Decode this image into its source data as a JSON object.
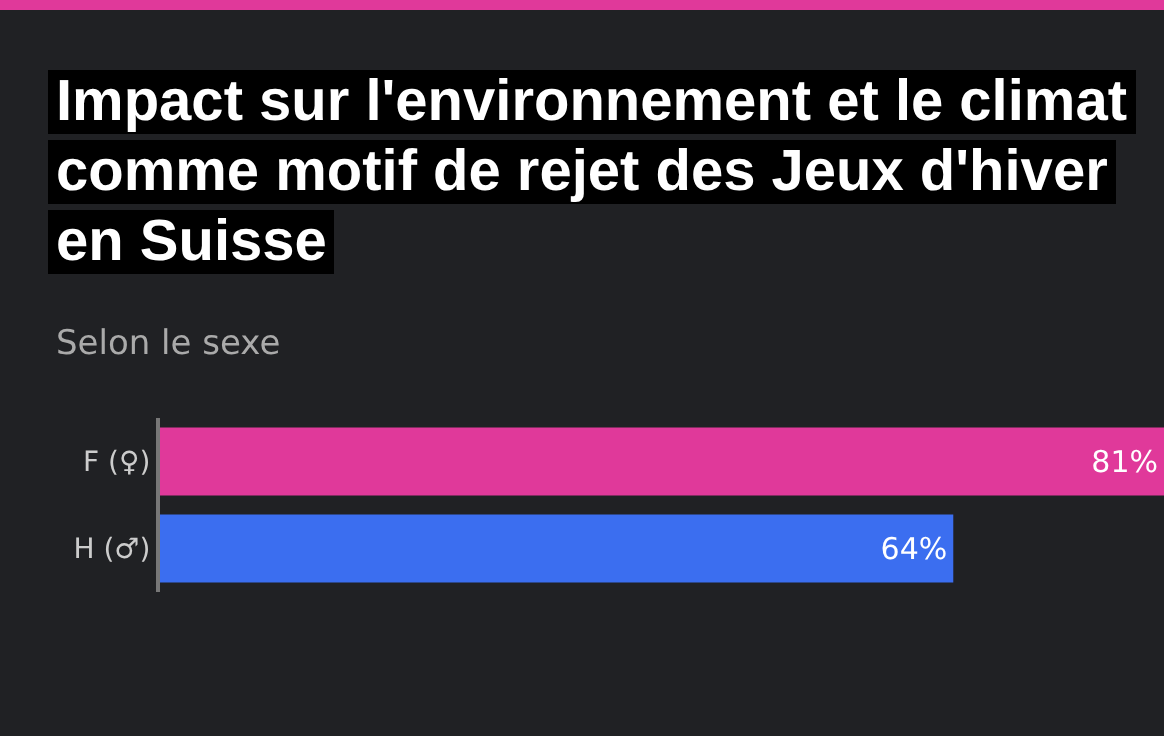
{
  "chart_data": {
    "type": "bar",
    "orientation": "horizontal",
    "title": "Impact sur l'environnement et le climat comme motif de rejet des Jeux d'hiver en Suisse",
    "subtitle": "Selon le sexe",
    "categories": [
      "F (♀)",
      "H (♂)"
    ],
    "values": [
      81,
      64
    ],
    "colors": [
      "#e0399a",
      "#3b6ef0"
    ],
    "value_labels": [
      "81%",
      "64%"
    ],
    "xlim": [
      0,
      81
    ],
    "tick_labels": "y",
    "grid": false,
    "legend": false
  }
}
